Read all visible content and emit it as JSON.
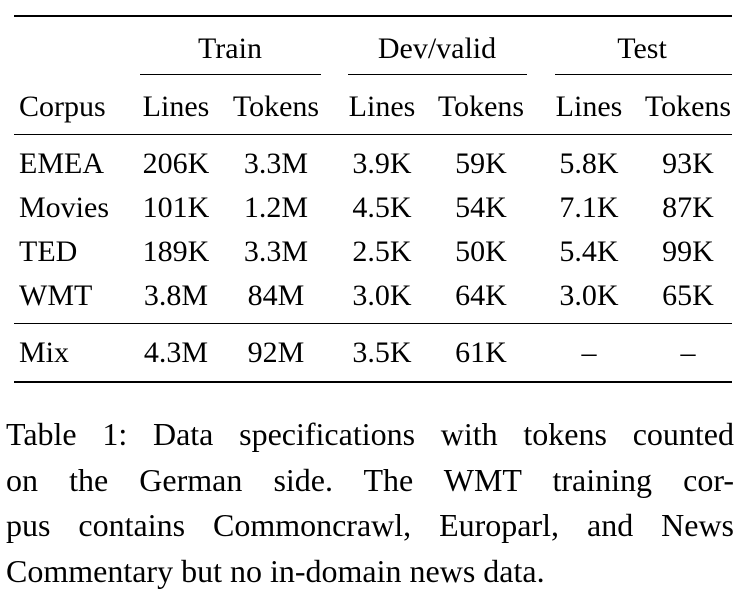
{
  "table": {
    "groups": [
      "Train",
      "Dev/valid",
      "Test"
    ],
    "header": {
      "corpus": "Corpus",
      "cols": [
        "Lines",
        "Tokens",
        "Lines",
        "Tokens",
        "Lines",
        "Tokens"
      ]
    },
    "rows": [
      {
        "corpus": "EMEA",
        "values": [
          "206K",
          "3.3M",
          "3.9K",
          "59K",
          "5.8K",
          "93K"
        ]
      },
      {
        "corpus": "Movies",
        "values": [
          "101K",
          "1.2M",
          "4.5K",
          "54K",
          "7.1K",
          "87K"
        ]
      },
      {
        "corpus": "TED",
        "values": [
          "189K",
          "3.3M",
          "2.5K",
          "50K",
          "5.4K",
          "99K"
        ]
      },
      {
        "corpus": "WMT",
        "values": [
          "3.8M",
          "84M",
          "3.0K",
          "64K",
          "3.0K",
          "65K"
        ]
      }
    ],
    "mix": {
      "corpus": "Mix",
      "values": [
        "4.3M",
        "92M",
        "3.5K",
        "61K",
        "–",
        "–"
      ]
    }
  },
  "caption": {
    "lines": [
      "Table 1: Data specifications with tokens counted",
      "on the German side.  The WMT training cor-",
      "pus contains Commoncrawl, Europarl, and News",
      "Commentary but no in-domain news data."
    ]
  }
}
